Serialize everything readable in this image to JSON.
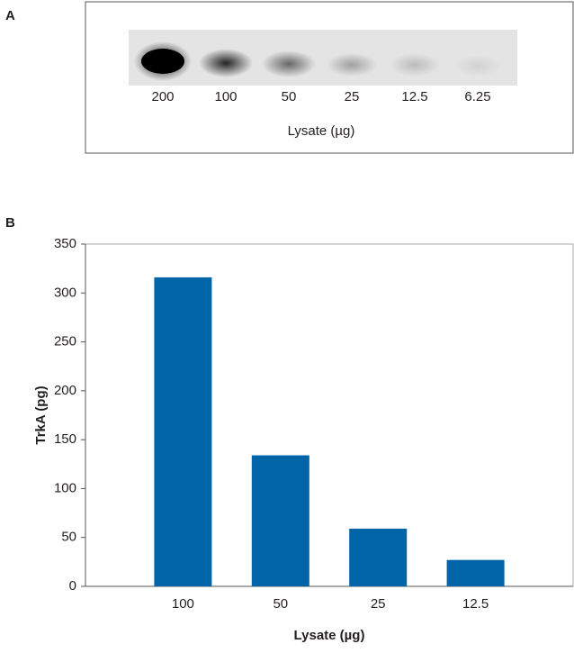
{
  "blot": {
    "panel_label": "A",
    "lanes": [
      "200",
      "100",
      "50",
      "25",
      "12.5",
      "6.25"
    ],
    "xlabel": "Lysate (µg)"
  },
  "chart_data": {
    "type": "bar",
    "panel_label": "B",
    "xlabel": "Lysate (µg)",
    "ylabel": "TrkA (pg)",
    "categories": [
      "100",
      "50",
      "25",
      "12.5"
    ],
    "values": [
      316,
      134,
      59,
      27
    ],
    "color": "#0064a8",
    "ylim": [
      0,
      350
    ],
    "yticks": [
      0,
      50,
      100,
      150,
      200,
      250,
      300,
      350
    ],
    "grid": false
  }
}
